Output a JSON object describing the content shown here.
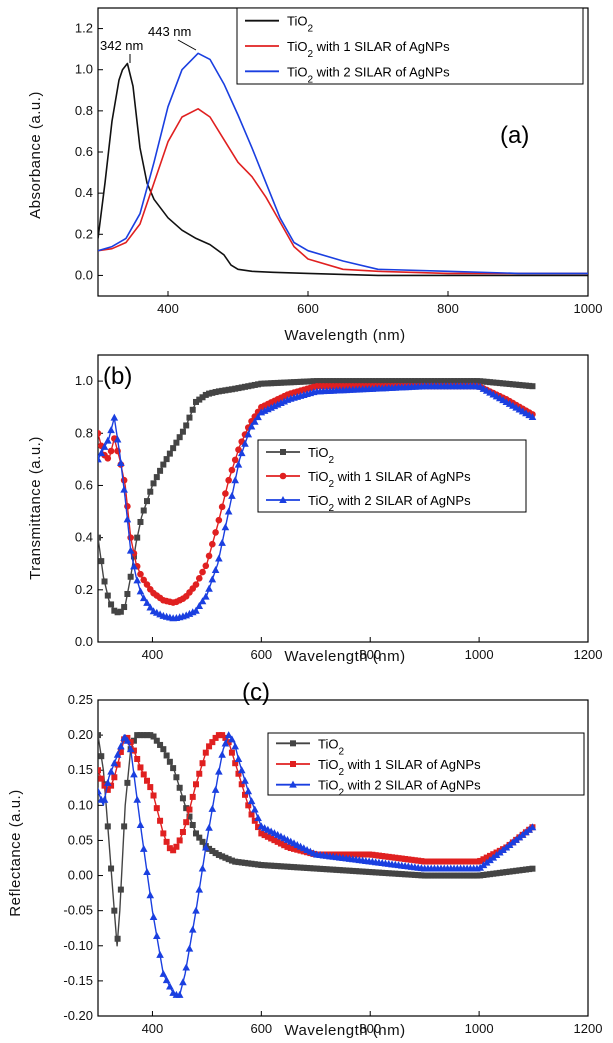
{
  "colors": {
    "black": "#111111",
    "gray": "#444444",
    "red": "#e02020",
    "blue": "#1a3fe0"
  },
  "chart_data": [
    {
      "type": "line",
      "panel_label": "(a)",
      "xlabel": "Wavelength (nm)",
      "ylabel": "Absorbance (a.u.)",
      "xlim": [
        300,
        1000
      ],
      "ylim": [
        -0.1,
        1.3
      ],
      "xticks": [
        400,
        600,
        800,
        1000
      ],
      "yticks": [
        0.0,
        0.2,
        0.4,
        0.6,
        0.8,
        1.0,
        1.2
      ],
      "marker": "none",
      "legend": "top-right",
      "annotations": [
        "342 nm",
        "443 nm"
      ],
      "series": [
        {
          "name": "TiO2",
          "color": "#111111",
          "x": [
            300,
            310,
            320,
            330,
            335,
            342,
            350,
            360,
            370,
            380,
            400,
            420,
            440,
            460,
            480,
            490,
            500,
            520,
            550,
            600,
            700,
            800,
            900,
            1000
          ],
          "y": [
            0.18,
            0.45,
            0.75,
            0.95,
            1.0,
            1.03,
            0.92,
            0.62,
            0.45,
            0.37,
            0.28,
            0.22,
            0.18,
            0.15,
            0.1,
            0.05,
            0.03,
            0.02,
            0.015,
            0.01,
            0.0,
            0.0,
            0.0,
            0.0
          ]
        },
        {
          "name": "TiO2 with 1 SILAR of AgNPs",
          "color": "#e02020",
          "x": [
            300,
            320,
            340,
            360,
            380,
            400,
            420,
            443,
            460,
            480,
            500,
            520,
            540,
            560,
            580,
            600,
            650,
            700,
            800,
            900,
            1000
          ],
          "y": [
            0.12,
            0.13,
            0.16,
            0.25,
            0.45,
            0.65,
            0.77,
            0.81,
            0.77,
            0.66,
            0.55,
            0.48,
            0.38,
            0.26,
            0.14,
            0.08,
            0.03,
            0.02,
            0.01,
            0.01,
            0.01
          ]
        },
        {
          "name": "TiO2 with 2 SILAR of AgNPs",
          "color": "#1a3fe0",
          "x": [
            300,
            320,
            340,
            360,
            380,
            400,
            420,
            443,
            460,
            480,
            500,
            520,
            540,
            560,
            580,
            600,
            650,
            700,
            800,
            900,
            1000
          ],
          "y": [
            0.12,
            0.14,
            0.18,
            0.3,
            0.55,
            0.82,
            1.0,
            1.08,
            1.05,
            0.93,
            0.78,
            0.62,
            0.45,
            0.28,
            0.16,
            0.12,
            0.07,
            0.03,
            0.02,
            0.01,
            0.01
          ]
        }
      ]
    },
    {
      "type": "line",
      "panel_label": "(b)",
      "xlabel": "Wavelength (nm)",
      "ylabel": "Transmittance (a.u.)",
      "xlim": [
        300,
        1200
      ],
      "ylim": [
        0.0,
        1.1
      ],
      "xticks": [
        400,
        600,
        800,
        1000,
        1200
      ],
      "yticks": [
        0.0,
        0.2,
        0.4,
        0.6,
        0.8,
        1.0
      ],
      "legend": "right",
      "series": [
        {
          "name": "TiO2",
          "color": "#444444",
          "marker": "square",
          "x": [
            300,
            310,
            320,
            330,
            340,
            350,
            360,
            370,
            380,
            400,
            420,
            440,
            460,
            480,
            500,
            520,
            550,
            600,
            700,
            800,
            900,
            1000,
            1050,
            1100
          ],
          "y": [
            0.4,
            0.25,
            0.16,
            0.12,
            0.11,
            0.14,
            0.25,
            0.38,
            0.48,
            0.6,
            0.68,
            0.75,
            0.82,
            0.92,
            0.95,
            0.96,
            0.97,
            0.99,
            1.0,
            1.0,
            1.0,
            1.0,
            0.99,
            0.98
          ]
        },
        {
          "name": "TiO2 with 1 SILAR of AgNPs",
          "color": "#e02020",
          "marker": "circle",
          "x": [
            300,
            310,
            320,
            330,
            340,
            350,
            360,
            370,
            380,
            400,
            420,
            440,
            460,
            480,
            500,
            520,
            540,
            560,
            580,
            600,
            650,
            700,
            800,
            900,
            1000,
            1050,
            1100
          ],
          "y": [
            0.8,
            0.72,
            0.7,
            0.78,
            0.7,
            0.6,
            0.4,
            0.3,
            0.25,
            0.19,
            0.16,
            0.15,
            0.17,
            0.22,
            0.3,
            0.45,
            0.62,
            0.75,
            0.84,
            0.9,
            0.95,
            0.98,
            0.98,
            0.98,
            0.98,
            0.93,
            0.87
          ]
        },
        {
          "name": "TiO2 with 2 SILAR of AgNPs",
          "color": "#1a3fe0",
          "marker": "triangle",
          "x": [
            300,
            310,
            320,
            330,
            340,
            350,
            360,
            370,
            380,
            400,
            420,
            440,
            460,
            480,
            500,
            520,
            540,
            560,
            580,
            600,
            650,
            700,
            800,
            900,
            1000,
            1050,
            1100
          ],
          "y": [
            0.7,
            0.74,
            0.78,
            0.86,
            0.72,
            0.55,
            0.35,
            0.25,
            0.18,
            0.12,
            0.1,
            0.09,
            0.1,
            0.12,
            0.18,
            0.3,
            0.5,
            0.7,
            0.82,
            0.88,
            0.93,
            0.96,
            0.97,
            0.98,
            0.98,
            0.92,
            0.86
          ]
        }
      ]
    },
    {
      "type": "line",
      "panel_label": "(c)",
      "xlabel": "Wavelength (nm)",
      "ylabel": "Reflectance (a.u.)",
      "xlim": [
        300,
        1200
      ],
      "ylim": [
        -0.2,
        0.25
      ],
      "xticks": [
        400,
        600,
        800,
        1000,
        1200
      ],
      "yticks": [
        -0.2,
        -0.15,
        -0.1,
        -0.05,
        0.0,
        0.05,
        0.1,
        0.15,
        0.2,
        0.25
      ],
      "legend": "top-right",
      "series": [
        {
          "name": "TiO2",
          "color": "#444444",
          "marker": "square",
          "x": [
            300,
            310,
            320,
            330,
            335,
            340,
            350,
            360,
            370,
            380,
            400,
            420,
            440,
            460,
            480,
            500,
            520,
            550,
            600,
            700,
            800,
            900,
            1000,
            1100
          ],
          "y": [
            0.2,
            0.15,
            0.05,
            -0.05,
            -0.1,
            -0.05,
            0.1,
            0.18,
            0.2,
            0.2,
            0.2,
            0.18,
            0.15,
            0.1,
            0.06,
            0.04,
            0.03,
            0.02,
            0.015,
            0.01,
            0.005,
            0.0,
            0.0,
            0.01
          ]
        },
        {
          "name": "TiO2 with 1 SILAR of AgNPs",
          "color": "#e02020",
          "marker": "square",
          "x": [
            300,
            310,
            320,
            330,
            340,
            350,
            360,
            370,
            380,
            400,
            420,
            430,
            440,
            450,
            460,
            480,
            500,
            520,
            530,
            540,
            560,
            580,
            600,
            650,
            700,
            800,
            900,
            1000,
            1050,
            1100
          ],
          "y": [
            0.15,
            0.13,
            0.12,
            0.14,
            0.17,
            0.2,
            0.19,
            0.17,
            0.15,
            0.12,
            0.06,
            0.04,
            0.035,
            0.05,
            0.07,
            0.13,
            0.18,
            0.2,
            0.2,
            0.19,
            0.14,
            0.09,
            0.06,
            0.04,
            0.03,
            0.03,
            0.02,
            0.02,
            0.04,
            0.07
          ]
        },
        {
          "name": "TiO2 with 2 SILAR of AgNPs",
          "color": "#1a3fe0",
          "marker": "triangle",
          "x": [
            300,
            310,
            320,
            330,
            340,
            350,
            360,
            370,
            380,
            400,
            420,
            440,
            450,
            460,
            480,
            500,
            520,
            530,
            540,
            550,
            560,
            580,
            600,
            650,
            700,
            800,
            900,
            1000,
            1050,
            1100
          ],
          "y": [
            0.12,
            0.1,
            0.14,
            0.16,
            0.18,
            0.2,
            0.18,
            0.12,
            0.06,
            -0.05,
            -0.14,
            -0.17,
            -0.17,
            -0.14,
            -0.05,
            0.05,
            0.14,
            0.18,
            0.2,
            0.19,
            0.16,
            0.11,
            0.07,
            0.05,
            0.03,
            0.02,
            0.01,
            0.01,
            0.04,
            0.07
          ]
        }
      ]
    }
  ]
}
